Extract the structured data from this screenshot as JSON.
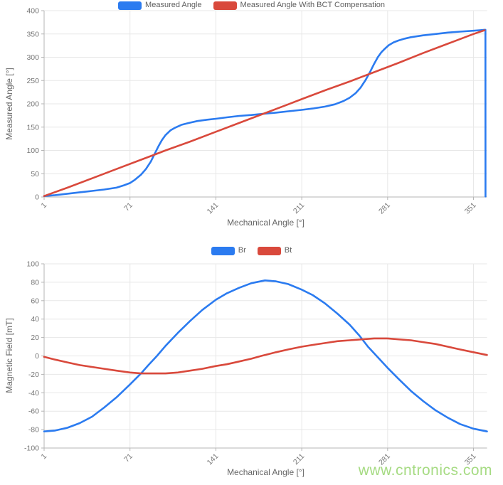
{
  "watermark": {
    "text": "www.cntronics.com",
    "color": "#a6db83"
  },
  "style": {
    "grid_color": "#e7e7e7",
    "axis_color": "#b5b5b5",
    "tick_label_color": "#767676",
    "series_blue": "#2b7bf0",
    "series_red": "#d9493c"
  },
  "chart_data": [
    {
      "type": "line",
      "title": "",
      "xlabel": "Mechanical Angle [°]",
      "ylabel": "Measured Angle [°]",
      "xlim": [
        1,
        362
      ],
      "ylim": [
        0,
        400
      ],
      "y_tick_step": 50,
      "x_ticks": [
        1,
        71,
        141,
        211,
        281,
        351
      ],
      "grid": true,
      "legend_position": "top",
      "series": [
        {
          "name": "Measured Angle",
          "color": "#2b7bf0",
          "points": [
            [
              1,
              2
            ],
            [
              10,
              4
            ],
            [
              20,
              7
            ],
            [
              30,
              10
            ],
            [
              40,
              13
            ],
            [
              50,
              16
            ],
            [
              60,
              20
            ],
            [
              66,
              25
            ],
            [
              71,
              30
            ],
            [
              75,
              37
            ],
            [
              80,
              48
            ],
            [
              84,
              60
            ],
            [
              88,
              76
            ],
            [
              91,
              92
            ],
            [
              94,
              108
            ],
            [
              97,
              122
            ],
            [
              100,
              133
            ],
            [
              104,
              143
            ],
            [
              108,
              149
            ],
            [
              113,
              155
            ],
            [
              119,
              159
            ],
            [
              126,
              163
            ],
            [
              134,
              166
            ],
            [
              141,
              168
            ],
            [
              150,
              171
            ],
            [
              160,
              174
            ],
            [
              170,
              176
            ],
            [
              181,
              179
            ],
            [
              190,
              181
            ],
            [
              200,
              184
            ],
            [
              211,
              187
            ],
            [
              220,
              190
            ],
            [
              230,
              194
            ],
            [
              238,
              199
            ],
            [
              245,
              206
            ],
            [
              250,
              213
            ],
            [
              255,
              223
            ],
            [
              259,
              235
            ],
            [
              263,
              251
            ],
            [
              267,
              270
            ],
            [
              270,
              286
            ],
            [
              273,
              300
            ],
            [
              276,
              311
            ],
            [
              279,
              319
            ],
            [
              282,
              326
            ],
            [
              286,
              332
            ],
            [
              290,
              336
            ],
            [
              295,
              340
            ],
            [
              300,
              343
            ],
            [
              310,
              347
            ],
            [
              320,
              350
            ],
            [
              330,
              353
            ],
            [
              340,
              355
            ],
            [
              351,
              357
            ],
            [
              356,
              358
            ],
            [
              360,
              359
            ],
            [
              360.7,
              359
            ],
            [
              360.8,
              1
            ]
          ]
        },
        {
          "name": "Measured Angle With BCT Compensation",
          "color": "#d9493c",
          "points": [
            [
              1,
              2
            ],
            [
              20,
              20
            ],
            [
              40,
              40
            ],
            [
              60,
              60
            ],
            [
              80,
              80
            ],
            [
              90,
              90
            ],
            [
              100,
              100
            ],
            [
              120,
              119
            ],
            [
              141,
              140
            ],
            [
              160,
              159
            ],
            [
              181,
              180
            ],
            [
              200,
              199
            ],
            [
              211,
              210
            ],
            [
              230,
              229
            ],
            [
              250,
              248
            ],
            [
              270,
              268
            ],
            [
              290,
              288
            ],
            [
              310,
              309
            ],
            [
              330,
              329
            ],
            [
              351,
              350
            ],
            [
              360,
              358
            ]
          ]
        }
      ]
    },
    {
      "type": "line",
      "title": "",
      "xlabel": "Mechanical Angle [°]",
      "ylabel": "Magnetic Field [mT]",
      "xlim": [
        1,
        362
      ],
      "ylim": [
        -100,
        100
      ],
      "y_tick_step": 20,
      "x_ticks": [
        1,
        71,
        141,
        211,
        281,
        351
      ],
      "grid": true,
      "legend_position": "top",
      "series": [
        {
          "name": "Br",
          "color": "#2b7bf0",
          "points": [
            [
              1,
              -82
            ],
            [
              10,
              -81
            ],
            [
              20,
              -78
            ],
            [
              30,
              -73
            ],
            [
              40,
              -66
            ],
            [
              50,
              -56
            ],
            [
              60,
              -45
            ],
            [
              71,
              -31
            ],
            [
              80,
              -19
            ],
            [
              86,
              -10
            ],
            [
              93,
              0
            ],
            [
              100,
              11
            ],
            [
              110,
              25
            ],
            [
              120,
              38
            ],
            [
              130,
              50
            ],
            [
              141,
              61
            ],
            [
              150,
              68
            ],
            [
              160,
              74
            ],
            [
              170,
              79
            ],
            [
              181,
              82
            ],
            [
              190,
              81
            ],
            [
              200,
              78
            ],
            [
              211,
              72
            ],
            [
              220,
              66
            ],
            [
              230,
              57
            ],
            [
              240,
              46
            ],
            [
              250,
              34
            ],
            [
              258,
              22
            ],
            [
              265,
              10
            ],
            [
              272,
              0
            ],
            [
              281,
              -13
            ],
            [
              290,
              -25
            ],
            [
              300,
              -38
            ],
            [
              310,
              -49
            ],
            [
              320,
              -59
            ],
            [
              330,
              -67
            ],
            [
              340,
              -74
            ],
            [
              351,
              -79
            ],
            [
              362,
              -82
            ]
          ]
        },
        {
          "name": "Bt",
          "color": "#d9493c",
          "points": [
            [
              1,
              -1
            ],
            [
              10,
              -4
            ],
            [
              20,
              -7
            ],
            [
              30,
              -10
            ],
            [
              40,
              -12
            ],
            [
              50,
              -14
            ],
            [
              60,
              -16
            ],
            [
              71,
              -18
            ],
            [
              80,
              -19
            ],
            [
              90,
              -19
            ],
            [
              100,
              -19
            ],
            [
              110,
              -18
            ],
            [
              120,
              -16
            ],
            [
              130,
              -14
            ],
            [
              141,
              -11
            ],
            [
              150,
              -9
            ],
            [
              160,
              -6
            ],
            [
              170,
              -3
            ],
            [
              178,
              0
            ],
            [
              190,
              4
            ],
            [
              200,
              7
            ],
            [
              211,
              10
            ],
            [
              220,
              12
            ],
            [
              230,
              14
            ],
            [
              240,
              16
            ],
            [
              250,
              17
            ],
            [
              260,
              18
            ],
            [
              270,
              19
            ],
            [
              281,
              19
            ],
            [
              290,
              18
            ],
            [
              300,
              17
            ],
            [
              310,
              15
            ],
            [
              320,
              13
            ],
            [
              330,
              10
            ],
            [
              340,
              7
            ],
            [
              351,
              4
            ],
            [
              362,
              1
            ]
          ]
        }
      ]
    }
  ]
}
